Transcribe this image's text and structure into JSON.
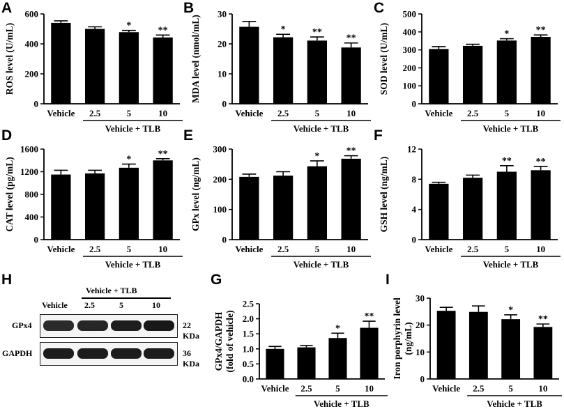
{
  "panels": {
    "A": "A",
    "B": "B",
    "C": "C",
    "D": "D",
    "E": "E",
    "F": "F",
    "G": "G",
    "H": "H",
    "I": "I"
  },
  "group_label": "Vehicle + TLB",
  "categories": [
    "Vehicle",
    "2.5",
    "5",
    "10"
  ],
  "colors": {
    "bar": "#000000",
    "axis": "#000000",
    "text": "#000000"
  },
  "chart_data": [
    {
      "id": "A",
      "type": "bar",
      "ylabel": "ROS level (U/mL)",
      "ylim": [
        0,
        600
      ],
      "yticks": [
        0,
        200,
        400,
        600
      ],
      "categories": [
        "Vehicle",
        "2.5",
        "5",
        "10"
      ],
      "values": [
        540,
        500,
        478,
        443
      ],
      "errors": [
        14,
        14,
        12,
        16
      ],
      "annotations": [
        "",
        "",
        "*",
        "**"
      ],
      "group_label": "Vehicle + TLB"
    },
    {
      "id": "B",
      "type": "bar",
      "ylabel": "MDA level (nmol/mL)",
      "ylim": [
        0,
        30
      ],
      "yticks": [
        0,
        10,
        20,
        30
      ],
      "categories": [
        "Vehicle",
        "2.5",
        "5",
        "10"
      ],
      "values": [
        25.7,
        22.2,
        21.1,
        18.8
      ],
      "errors": [
        1.8,
        1.0,
        1.2,
        1.5
      ],
      "annotations": [
        "",
        "*",
        "**",
        "**"
      ],
      "group_label": "Vehicle + TLB"
    },
    {
      "id": "C",
      "type": "bar",
      "ylabel": "SOD level (U/mL)",
      "ylim": [
        0,
        500
      ],
      "yticks": [
        0,
        100,
        200,
        300,
        400,
        500
      ],
      "categories": [
        "Vehicle",
        "2.5",
        "5",
        "10"
      ],
      "values": [
        305,
        322,
        352,
        372
      ],
      "errors": [
        13,
        9,
        10,
        11
      ],
      "annotations": [
        "",
        "",
        "*",
        "**"
      ],
      "group_label": "Vehicle + TLB"
    },
    {
      "id": "D",
      "type": "bar",
      "ylabel": "CAT level (pg/mL)",
      "ylim": [
        0,
        1600
      ],
      "yticks": [
        0,
        400,
        800,
        1200,
        1600
      ],
      "categories": [
        "Vehicle",
        "2.5",
        "5",
        "10"
      ],
      "values": [
        1150,
        1170,
        1270,
        1400
      ],
      "errors": [
        75,
        55,
        65,
        30
      ],
      "annotations": [
        "",
        "",
        "*",
        "**"
      ],
      "group_label": "Vehicle + TLB"
    },
    {
      "id": "E",
      "type": "bar",
      "ylabel": "GPx level (ng/mL)",
      "ylim": [
        0,
        300
      ],
      "yticks": [
        0,
        100,
        200,
        300
      ],
      "categories": [
        "Vehicle",
        "2.5",
        "5",
        "10"
      ],
      "values": [
        208,
        212,
        243,
        268
      ],
      "errors": [
        9,
        13,
        18,
        10
      ],
      "annotations": [
        "",
        "",
        "*",
        "**"
      ],
      "group_label": "Vehicle + TLB"
    },
    {
      "id": "F",
      "type": "bar",
      "ylabel": "GSH level (ng/mL)",
      "ylim": [
        0,
        12
      ],
      "yticks": [
        0,
        4,
        8,
        12
      ],
      "categories": [
        "Vehicle",
        "2.5",
        "5",
        "10"
      ],
      "values": [
        7.4,
        8.2,
        9.0,
        9.2
      ],
      "errors": [
        0.2,
        0.35,
        0.8,
        0.5
      ],
      "annotations": [
        "",
        "",
        "**",
        "**"
      ],
      "group_label": "Vehicle + TLB"
    },
    {
      "id": "G",
      "type": "bar",
      "ylabel": "GPx4/GAPDH",
      "ylabel2": "(fold of vehicle)",
      "ylim": [
        0,
        2.5
      ],
      "yticks": [
        0.0,
        0.5,
        1.0,
        1.5,
        2.0,
        2.5
      ],
      "tick_decimals": 1,
      "categories": [
        "Vehicle",
        "2.5",
        "5",
        "10"
      ],
      "values": [
        1.0,
        1.05,
        1.36,
        1.7
      ],
      "errors": [
        0.08,
        0.06,
        0.16,
        0.22
      ],
      "annotations": [
        "",
        "",
        "*",
        "**"
      ],
      "group_label": "Vehicle + TLB"
    },
    {
      "id": "I",
      "type": "bar",
      "ylabel": "Iron porphyrin level",
      "ylabel2": "(ng/mL)",
      "ylim": [
        0,
        30
      ],
      "yticks": [
        0,
        10,
        20,
        30
      ],
      "categories": [
        "Vehicle",
        "2.5",
        "5",
        "10"
      ],
      "values": [
        25.3,
        24.9,
        22.2,
        19.3
      ],
      "errors": [
        1.3,
        2.2,
        1.6,
        1.1
      ],
      "annotations": [
        "",
        "",
        "*",
        "**"
      ],
      "group_label": "Vehicle + TLB"
    }
  ],
  "blot": {
    "group_label": "Vehicle + TLB",
    "lanes": [
      "Vehicle",
      "2.5",
      "5",
      "10"
    ],
    "rows": [
      {
        "protein": "GPx4",
        "size": "22 KDa"
      },
      {
        "protein": "GAPDH",
        "size": "36 KDa"
      }
    ]
  }
}
